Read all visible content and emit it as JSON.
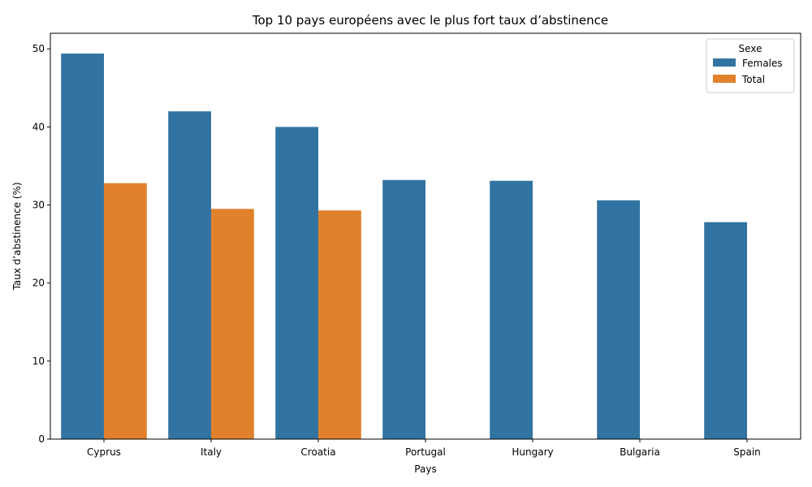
{
  "chart_data": {
    "type": "bar",
    "title": "Top 10 pays européens avec le plus fort taux d’abstinence",
    "xlabel": "Pays",
    "ylabel": "Taux d’abstinence (%)",
    "categories": [
      "Cyprus",
      "Italy",
      "Croatia",
      "Portugal",
      "Hungary",
      "Bulgaria",
      "Spain"
    ],
    "series": [
      {
        "name": "Females",
        "color": "#3274a1",
        "values": [
          49.4,
          42.0,
          40.0,
          33.2,
          33.1,
          30.6,
          27.8
        ]
      },
      {
        "name": "Total",
        "color": "#e1812c",
        "values": [
          32.8,
          29.5,
          29.3,
          null,
          null,
          null,
          null
        ]
      }
    ],
    "ylim": [
      0,
      52
    ],
    "yticks": [
      0,
      10,
      20,
      30,
      40,
      50
    ],
    "grid": false,
    "legend": {
      "title": "Sexe",
      "placement": "top-right"
    }
  }
}
